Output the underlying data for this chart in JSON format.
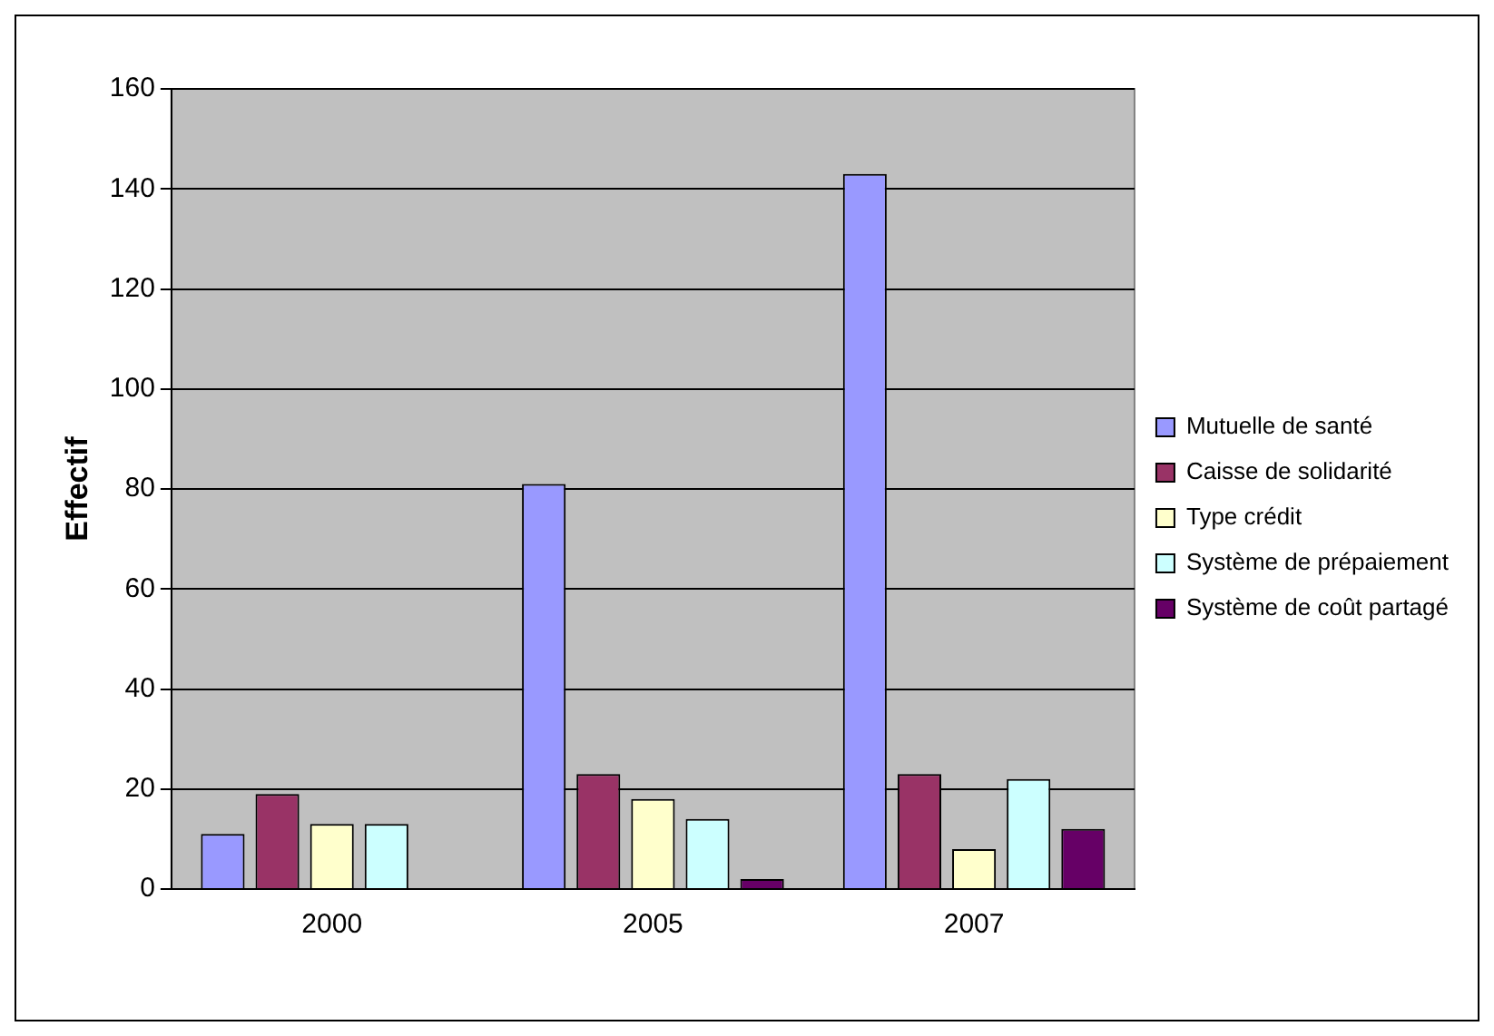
{
  "chart_data": {
    "type": "bar",
    "ylabel": "Effectif",
    "categories": [
      "2000",
      "2005",
      "2007"
    ],
    "series": [
      {
        "name": "Mutuelle de santé",
        "color": "#9999ff",
        "values": [
          11,
          81,
          143
        ]
      },
      {
        "name": "Caisse de solidarité",
        "color": "#993366",
        "values": [
          19,
          23,
          23
        ]
      },
      {
        "name": "Type crédit",
        "color": "#ffffcc",
        "values": [
          13,
          18,
          8
        ]
      },
      {
        "name": "Système de prépaiement",
        "color": "#ccffff",
        "values": [
          13,
          14,
          22
        ]
      },
      {
        "name": "Système de coût partagé",
        "color": "#660066",
        "values": [
          null,
          2,
          12
        ]
      }
    ],
    "ylim": [
      0,
      160
    ],
    "yticks": [
      0,
      20,
      40,
      60,
      80,
      100,
      120,
      140,
      160
    ],
    "grid": "y",
    "legend": "right"
  }
}
